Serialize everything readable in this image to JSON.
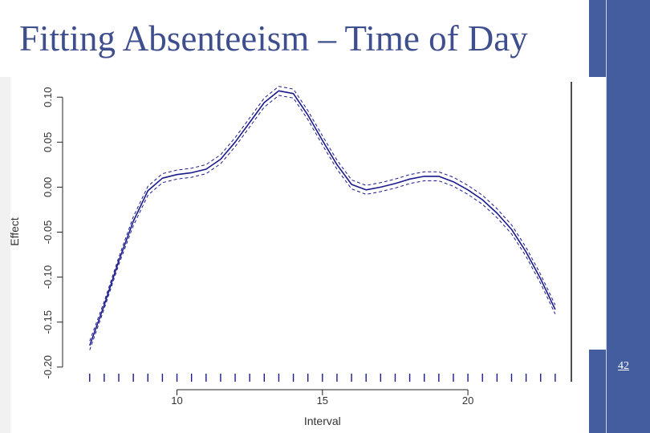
{
  "slide": {
    "title": "Fitting Absenteeism – Time of Day",
    "slide_number": "42"
  },
  "colors": {
    "title": "#3f4f8e",
    "sidebar": "#435d9e",
    "curve": "#1a1a8c",
    "rug": "#1a1a8c",
    "axis": "#222222"
  },
  "chart_data": {
    "type": "line",
    "title": "",
    "xlabel": "Interval",
    "ylabel": "Effect",
    "xlim": [
      6.4,
      23.5
    ],
    "ylim": [
      -0.218,
      0.118
    ],
    "x_ticks": [
      10,
      15,
      20
    ],
    "x_tick_labels": [
      "10",
      "15",
      "20"
    ],
    "y_ticks": [
      -0.2,
      -0.15,
      -0.1,
      -0.05,
      0.0,
      0.05,
      0.1
    ],
    "y_tick_labels": [
      "-0.20",
      "-0.15",
      "-0.10",
      "-0.05",
      "0.00",
      "0.05",
      "0.10"
    ],
    "grid": false,
    "legend": "none",
    "series": [
      {
        "role": "estimate",
        "line_style": "solid",
        "x": [
          7,
          7.5,
          8,
          8.5,
          9,
          9.5,
          10,
          10.5,
          11,
          11.5,
          12,
          12.5,
          13,
          13.5,
          14,
          14.5,
          15,
          15.5,
          16,
          16.5,
          17,
          17.5,
          18,
          18.5,
          19,
          19.5,
          20,
          20.5,
          21,
          21.5,
          22,
          22.5,
          23
        ],
        "y": [
          -0.176,
          -0.131,
          -0.082,
          -0.038,
          -0.004,
          0.01,
          0.014,
          0.016,
          0.02,
          0.031,
          0.05,
          0.072,
          0.094,
          0.107,
          0.104,
          0.08,
          0.052,
          0.025,
          0.003,
          -0.003,
          0.0,
          0.004,
          0.009,
          0.012,
          0.012,
          0.006,
          -0.003,
          -0.014,
          -0.029,
          -0.047,
          -0.072,
          -0.102,
          -0.136
        ]
      },
      {
        "role": "upper bound",
        "line_style": "dashed",
        "x": [
          7,
          7.5,
          8,
          8.5,
          9,
          9.5,
          10,
          10.5,
          11,
          11.5,
          12,
          12.5,
          13,
          13.5,
          14,
          14.5,
          15,
          15.5,
          16,
          16.5,
          17,
          17.5,
          18,
          18.5,
          19,
          19.5,
          20,
          20.5,
          21,
          21.5,
          22,
          22.5,
          23
        ],
        "y": [
          -0.171,
          -0.127,
          -0.078,
          -0.033,
          0.001,
          0.015,
          0.019,
          0.021,
          0.025,
          0.036,
          0.055,
          0.077,
          0.099,
          0.112,
          0.109,
          0.085,
          0.057,
          0.03,
          0.008,
          0.002,
          0.005,
          0.009,
          0.014,
          0.017,
          0.017,
          0.011,
          0.002,
          -0.009,
          -0.024,
          -0.042,
          -0.067,
          -0.097,
          -0.131
        ]
      },
      {
        "role": "lower bound",
        "line_style": "dashed",
        "x": [
          7,
          7.5,
          8,
          8.5,
          9,
          9.5,
          10,
          10.5,
          11,
          11.5,
          12,
          12.5,
          13,
          13.5,
          14,
          14.5,
          15,
          15.5,
          16,
          16.5,
          17,
          17.5,
          18,
          18.5,
          19,
          19.5,
          20,
          20.5,
          21,
          21.5,
          22,
          22.5,
          23
        ],
        "y": [
          -0.181,
          -0.135,
          -0.086,
          -0.043,
          -0.009,
          0.005,
          0.009,
          0.011,
          0.015,
          0.026,
          0.045,
          0.067,
          0.089,
          0.102,
          0.099,
          0.075,
          0.047,
          0.02,
          -0.002,
          -0.008,
          -0.005,
          -0.001,
          0.004,
          0.007,
          0.007,
          0.001,
          -0.008,
          -0.019,
          -0.034,
          -0.052,
          -0.077,
          -0.107,
          -0.141
        ]
      }
    ],
    "rug": [
      7.0,
      7.5,
      8.0,
      8.5,
      9.0,
      9.5,
      10.0,
      10.5,
      11.0,
      11.5,
      12.0,
      12.5,
      13.0,
      13.5,
      14.0,
      14.5,
      15.0,
      15.5,
      16.0,
      16.5,
      17.0,
      17.5,
      18.0,
      18.5,
      19.0,
      19.5,
      20.0,
      20.5,
      21.0,
      21.5,
      22.0,
      22.5,
      23.0
    ]
  }
}
